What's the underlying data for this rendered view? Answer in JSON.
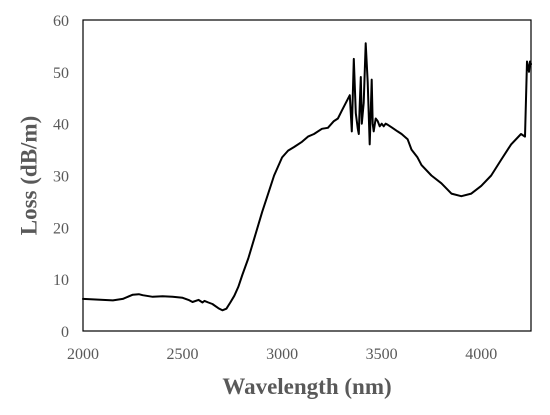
{
  "chart_data": {
    "type": "line",
    "title": "",
    "xlabel": "Wavelength (nm)",
    "ylabel": "Loss (dB/m)",
    "xlim": [
      2000,
      4250
    ],
    "ylim": [
      0,
      60
    ],
    "xticks": [
      2000,
      2500,
      3000,
      3500,
      4000
    ],
    "yticks": [
      0,
      10,
      20,
      30,
      40,
      50,
      60
    ],
    "grid": false,
    "legend": "none",
    "line_color": "#000000",
    "series": [
      {
        "x": [
          2000,
          2050,
          2100,
          2150,
          2200,
          2250,
          2280,
          2300,
          2350,
          2400,
          2450,
          2500,
          2530,
          2550,
          2580,
          2600,
          2610,
          2630,
          2650,
          2680,
          2700,
          2720,
          2740,
          2760,
          2780,
          2800,
          2830,
          2860,
          2900,
          2930,
          2960,
          3000,
          3030,
          3060,
          3100,
          3130,
          3160,
          3200,
          3230,
          3260,
          3280,
          3300,
          3320,
          3340,
          3350,
          3360,
          3370,
          3380,
          3385,
          3390,
          3395,
          3400,
          3410,
          3420,
          3430,
          3440,
          3445,
          3450,
          3455,
          3460,
          3470,
          3480,
          3490,
          3500,
          3510,
          3520,
          3530,
          3550,
          3580,
          3600,
          3630,
          3650,
          3680,
          3700,
          3750,
          3800,
          3850,
          3900,
          3950,
          4000,
          4050,
          4100,
          4150,
          4200,
          4220,
          4230,
          4240,
          4245,
          4250
        ],
        "values": [
          6.2,
          6.1,
          6.0,
          5.9,
          6.2,
          7.0,
          7.1,
          6.9,
          6.6,
          6.7,
          6.6,
          6.4,
          6.0,
          5.6,
          6.0,
          5.5,
          5.8,
          5.5,
          5.2,
          4.4,
          4.0,
          4.3,
          5.5,
          6.8,
          8.5,
          10.8,
          14.0,
          17.8,
          23.0,
          26.5,
          30.0,
          33.5,
          34.8,
          35.5,
          36.5,
          37.5,
          38.0,
          39.0,
          39.2,
          40.5,
          41.0,
          42.5,
          44.0,
          45.5,
          38.5,
          52.5,
          42.0,
          39.0,
          38.0,
          44.0,
          49.0,
          40.0,
          44.0,
          55.5,
          48.0,
          36.0,
          42.0,
          48.5,
          40.0,
          38.5,
          41.0,
          40.5,
          39.5,
          40.0,
          39.5,
          40.0,
          39.8,
          39.3,
          38.5,
          38.0,
          37.0,
          35.0,
          33.5,
          32.0,
          30.0,
          28.5,
          26.5,
          26.0,
          26.5,
          28.0,
          30.0,
          33.0,
          36.0,
          38.0,
          37.5,
          52.0,
          50.0,
          52.0,
          51.5
        ]
      }
    ]
  }
}
